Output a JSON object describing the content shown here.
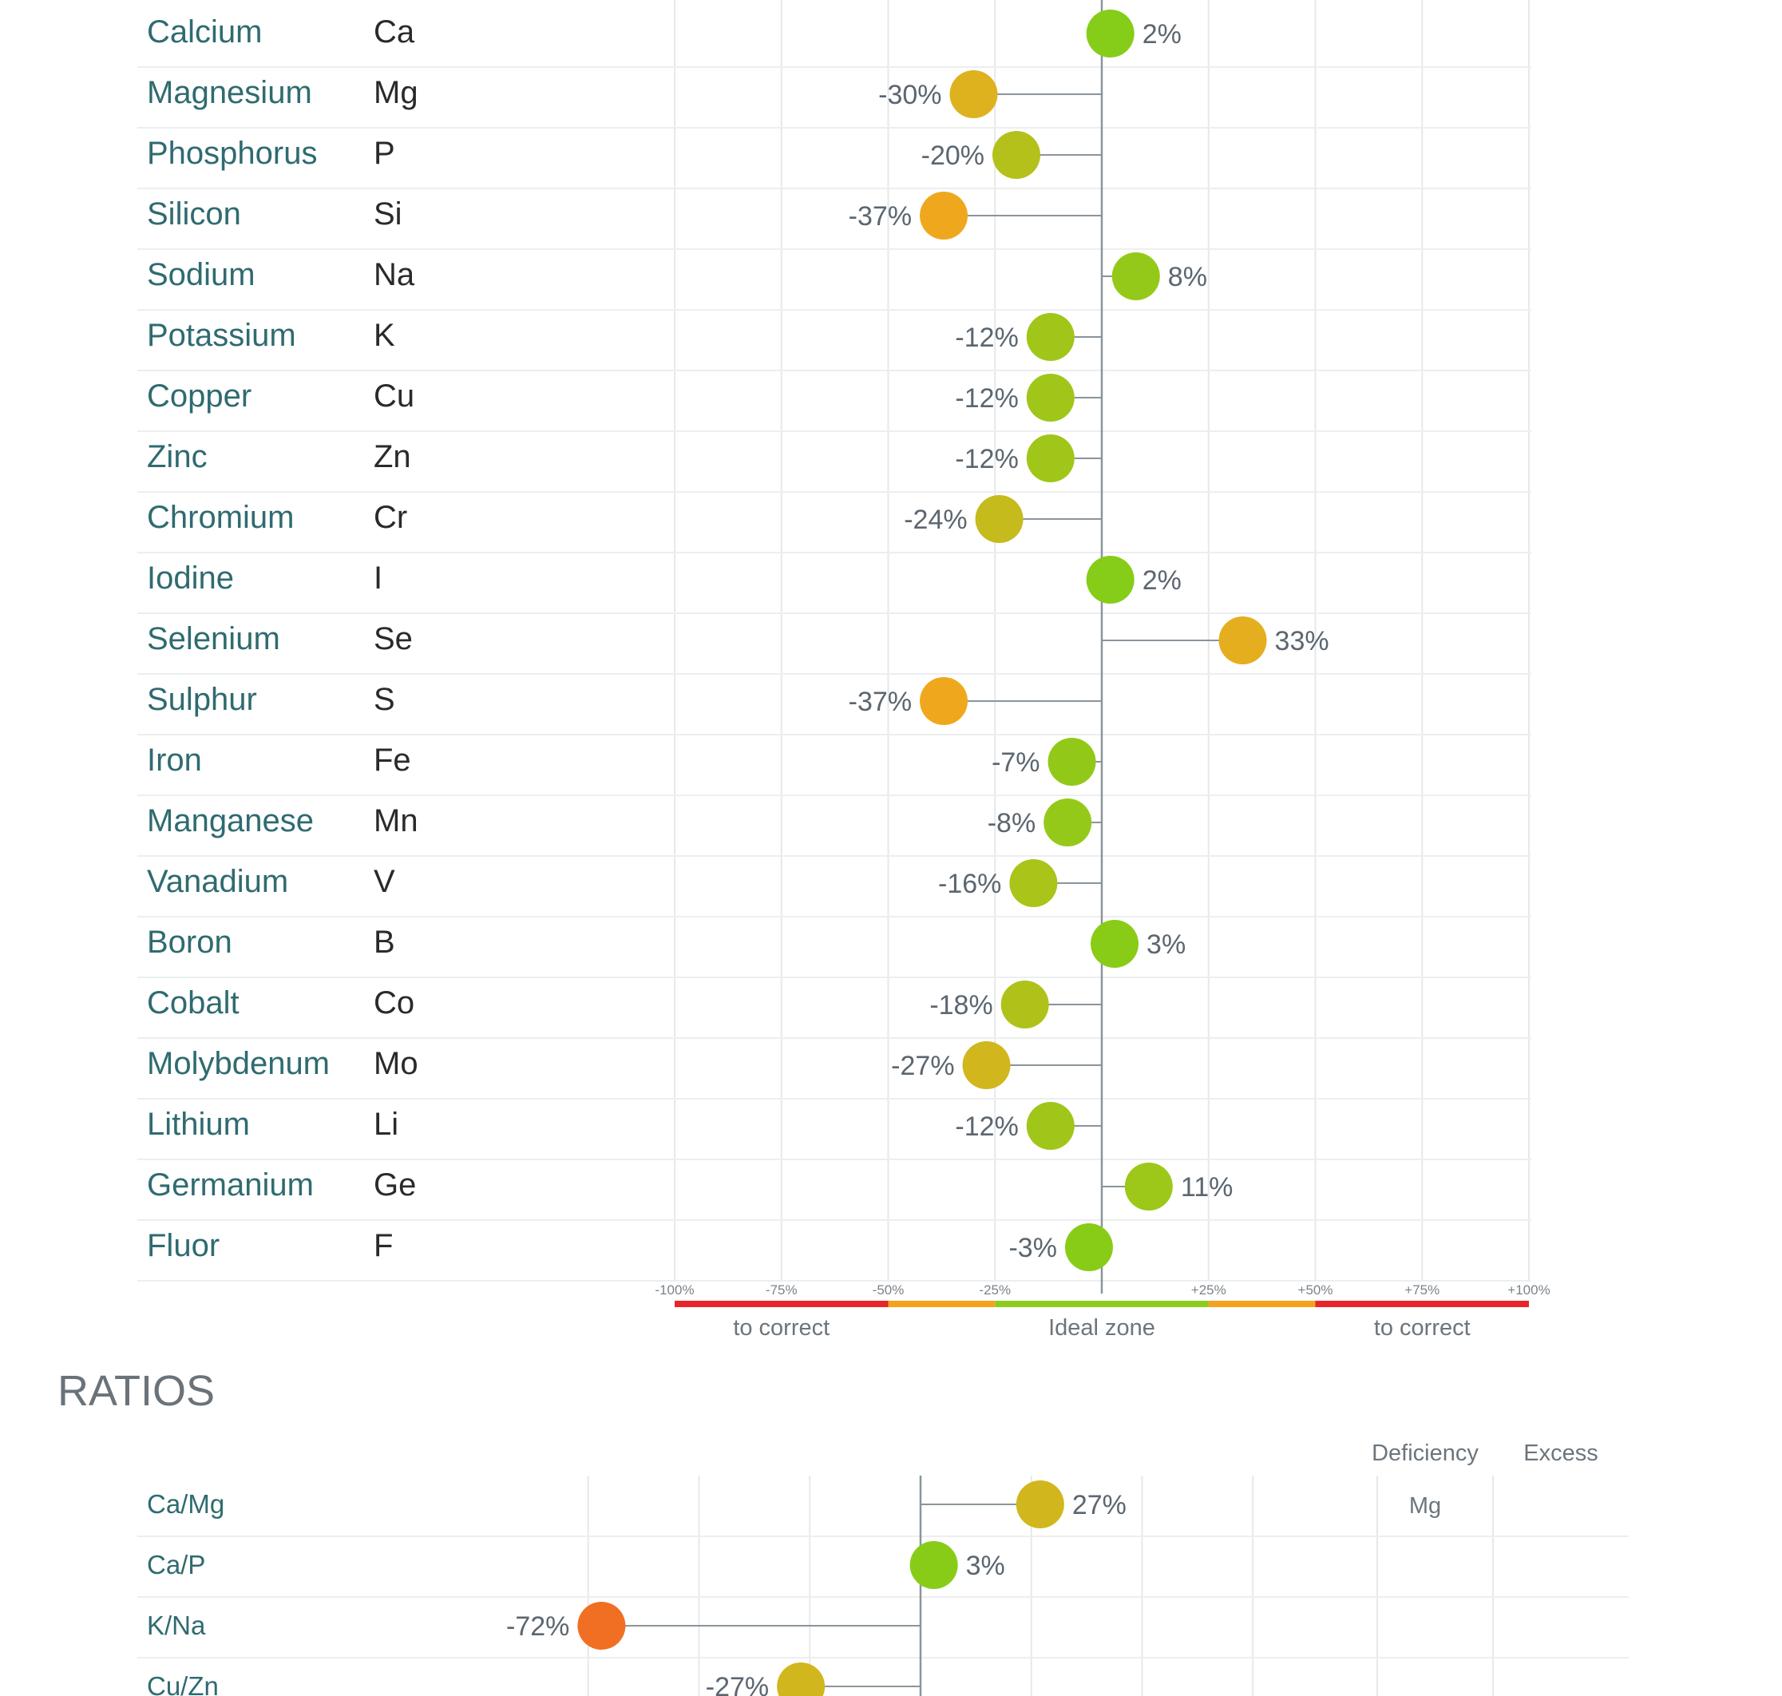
{
  "chart_data": [
    {
      "type": "scatter",
      "xlim": [
        -100,
        100
      ],
      "tick_labels": [
        "-100%",
        "-75%",
        "-50%",
        "-25%",
        "+25%",
        "+50%",
        "+75%",
        "+100%"
      ],
      "zone_labels": [
        "to correct",
        "Ideal zone",
        "to correct"
      ],
      "rows": [
        {
          "name": "Calcium",
          "symbol": "Ca",
          "value": 2,
          "label": "2%"
        },
        {
          "name": "Magnesium",
          "symbol": "Mg",
          "value": -30,
          "label": "-30%"
        },
        {
          "name": "Phosphorus",
          "symbol": "P",
          "value": -20,
          "label": "-20%"
        },
        {
          "name": "Silicon",
          "symbol": "Si",
          "value": -37,
          "label": "-37%"
        },
        {
          "name": "Sodium",
          "symbol": "Na",
          "value": 8,
          "label": "8%"
        },
        {
          "name": "Potassium",
          "symbol": "K",
          "value": -12,
          "label": "-12%"
        },
        {
          "name": "Copper",
          "symbol": "Cu",
          "value": -12,
          "label": "-12%"
        },
        {
          "name": "Zinc",
          "symbol": "Zn",
          "value": -12,
          "label": "-12%"
        },
        {
          "name": "Chromium",
          "symbol": "Cr",
          "value": -24,
          "label": "-24%"
        },
        {
          "name": "Iodine",
          "symbol": "I",
          "value": 2,
          "label": "2%"
        },
        {
          "name": "Selenium",
          "symbol": "Se",
          "value": 33,
          "label": "33%"
        },
        {
          "name": "Sulphur",
          "symbol": "S",
          "value": -37,
          "label": "-37%"
        },
        {
          "name": "Iron",
          "symbol": "Fe",
          "value": -7,
          "label": "-7%"
        },
        {
          "name": "Manganese",
          "symbol": "Mn",
          "value": -8,
          "label": "-8%"
        },
        {
          "name": "Vanadium",
          "symbol": "V",
          "value": -16,
          "label": "-16%"
        },
        {
          "name": "Boron",
          "symbol": "B",
          "value": 3,
          "label": "3%"
        },
        {
          "name": "Cobalt",
          "symbol": "Co",
          "value": -18,
          "label": "-18%"
        },
        {
          "name": "Molybdenum",
          "symbol": "Mo",
          "value": -27,
          "label": "-27%"
        },
        {
          "name": "Lithium",
          "symbol": "Li",
          "value": -12,
          "label": "-12%"
        },
        {
          "name": "Germanium",
          "symbol": "Ge",
          "value": 11,
          "label": "11%"
        },
        {
          "name": "Fluor",
          "symbol": "F",
          "value": -3,
          "label": "-3%"
        }
      ]
    },
    {
      "type": "scatter",
      "title": "RATIOS",
      "headers": [
        "Deficiency",
        "Excess"
      ],
      "rows": [
        {
          "name": "Ca/Mg",
          "value": 27,
          "label": "27%",
          "deficiency": "Mg",
          "excess": ""
        },
        {
          "name": "Ca/P",
          "value": 3,
          "label": "3%",
          "deficiency": "",
          "excess": ""
        },
        {
          "name": "K/Na",
          "value": -72,
          "label": "-72%",
          "deficiency": "",
          "excess": ""
        },
        {
          "name": "Cu/Zn",
          "value": -27,
          "label": "-27%",
          "deficiency": "",
          "excess": ""
        }
      ]
    }
  ],
  "colors": {
    "scale_red": "#e8262a",
    "scale_orange": "#f4a21d",
    "scale_green": "#8ccd1b",
    "grid": "#e6e8ea",
    "axis": "#8a949b"
  }
}
